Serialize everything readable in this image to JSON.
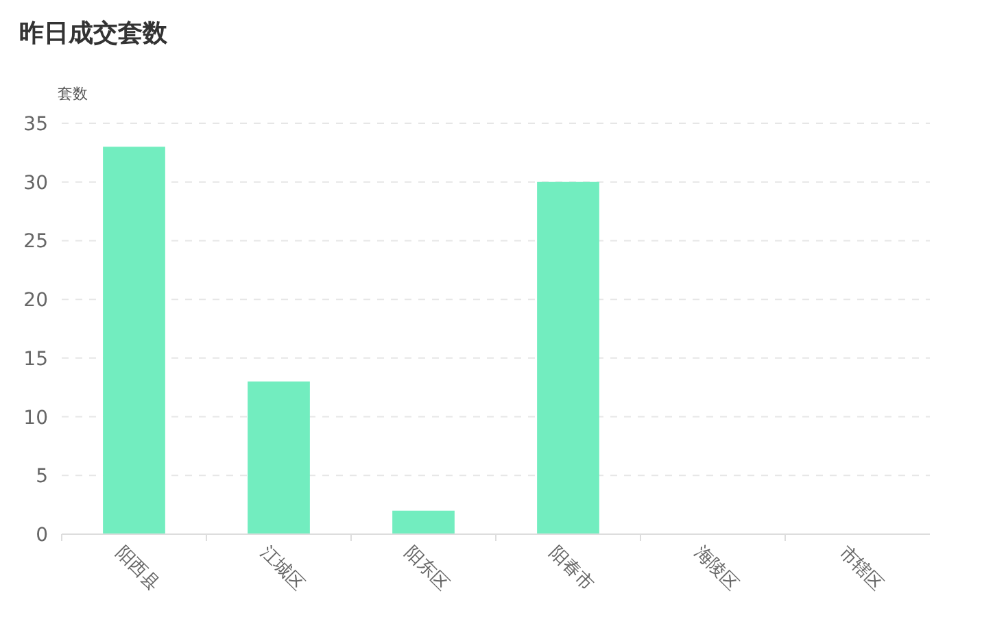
{
  "chart_data": {
    "type": "bar",
    "title": "昨日成交套数",
    "ylabel": "套数",
    "categories": [
      "阳西县",
      "江城区",
      "阳东区",
      "阳春市",
      "海陵区",
      "市辖区"
    ],
    "values": [
      33,
      13,
      2,
      30,
      0,
      0
    ],
    "color": "#72edbf",
    "ylim": [
      0,
      35
    ],
    "yticks": [
      0,
      5,
      10,
      15,
      20,
      25,
      30,
      35
    ],
    "grid": "y"
  }
}
